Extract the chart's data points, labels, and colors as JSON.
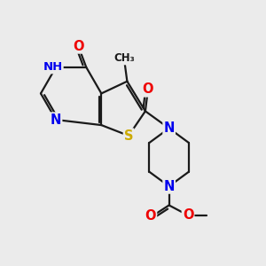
{
  "bg_color": "#ebebeb",
  "bond_color": "#1a1a1a",
  "N_color": "#0000ee",
  "O_color": "#ee0000",
  "S_color": "#ccaa00",
  "H_color": "#888888",
  "C_color": "#1a1a1a",
  "bond_width": 1.6,
  "dbo": 0.09,
  "font_size_atom": 10.5,
  "xlim": [
    0,
    10
  ],
  "ylim": [
    0,
    10
  ]
}
